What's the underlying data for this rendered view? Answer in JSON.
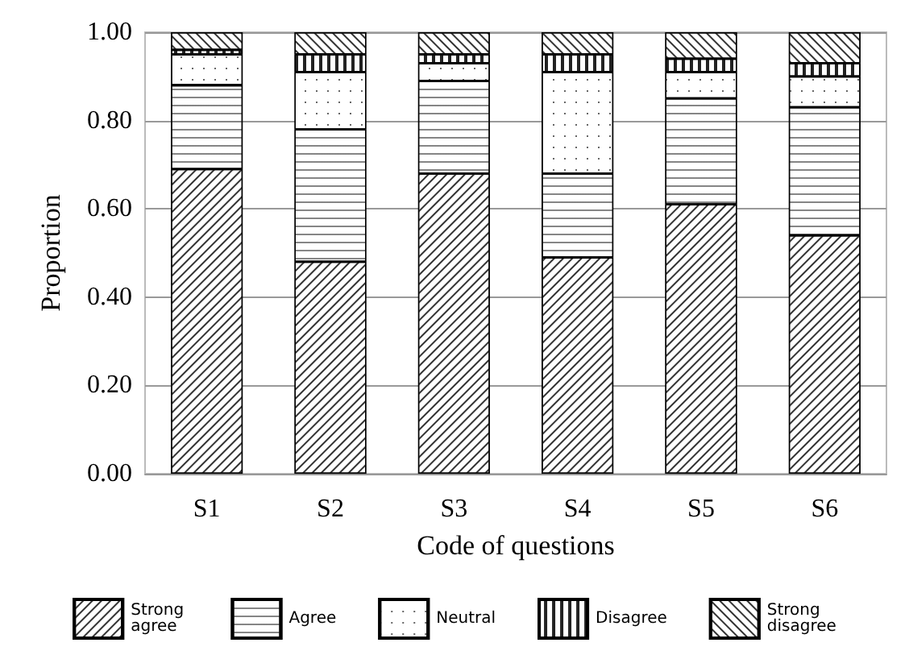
{
  "chart_data": {
    "type": "bar",
    "stacked": true,
    "xlabel": "Code of questions",
    "ylabel": "Proportion",
    "categories": [
      "S1",
      "S2",
      "S3",
      "S4",
      "S5",
      "S6"
    ],
    "series": [
      {
        "name": "Strong agree",
        "color": "#ffffff",
        "values": [
          0.69,
          0.48,
          0.68,
          0.49,
          0.61,
          0.54
        ]
      },
      {
        "name": "Agree",
        "color": "#ffffff",
        "values": [
          0.19,
          0.3,
          0.21,
          0.19,
          0.24,
          0.29
        ]
      },
      {
        "name": "Neutral",
        "color": "#ffffff",
        "values": [
          0.07,
          0.13,
          0.04,
          0.23,
          0.06,
          0.07
        ]
      },
      {
        "name": "Disagree",
        "color": "#ffffff",
        "values": [
          0.01,
          0.04,
          0.02,
          0.04,
          0.03,
          0.03
        ]
      },
      {
        "name": "Strong disagree",
        "color": "#ffffff",
        "values": [
          0.04,
          0.05,
          0.05,
          0.05,
          0.06,
          0.07
        ]
      }
    ],
    "ylim": [
      0,
      1
    ],
    "yticks": [
      {
        "value": 0,
        "label": "0.00"
      },
      {
        "value": 0.2,
        "label": "0.20"
      },
      {
        "value": 0.4,
        "label": "0.40"
      },
      {
        "value": 0.6,
        "label": "0.60"
      },
      {
        "value": 0.8,
        "label": "0.80"
      },
      {
        "value": 1,
        "label": "1.00"
      }
    ],
    "grid": "y",
    "legend": "bottom"
  }
}
